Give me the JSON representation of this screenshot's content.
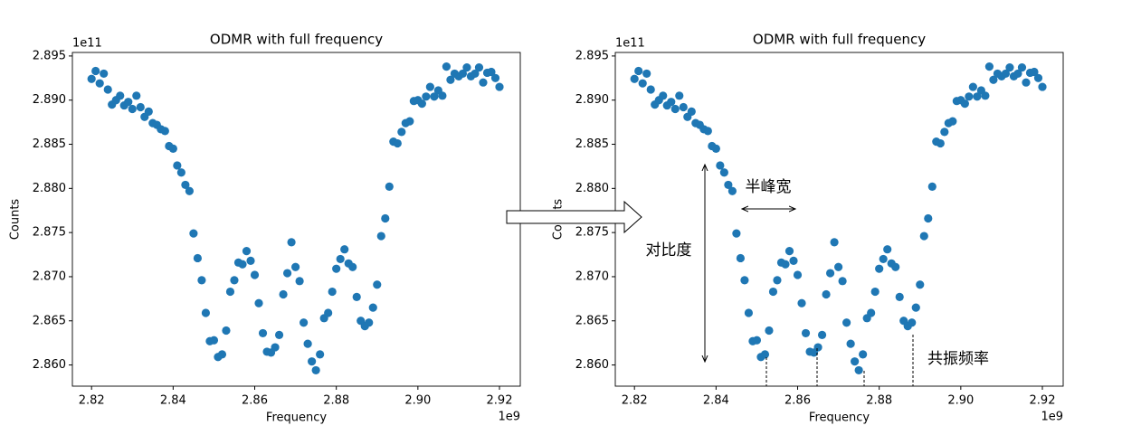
{
  "chart_data": [
    {
      "type": "scatter",
      "title": "ODMR with full frequency",
      "x_label": "Frequency",
      "y_label": "Counts",
      "x_offset_label": "1e9",
      "y_offset_label": "1e11",
      "series": [
        {
          "color": "#1f77b4",
          "x": [
            2.82,
            2.821,
            2.822,
            2.823,
            2.824,
            2.825,
            2.826,
            2.827,
            2.828,
            2.829,
            2.83,
            2.831,
            2.832,
            2.833,
            2.834,
            2.835,
            2.836,
            2.837,
            2.838,
            2.839,
            2.84,
            2.841,
            2.842,
            2.843,
            2.844,
            2.845,
            2.846,
            2.847,
            2.848,
            2.849,
            2.85,
            2.851,
            2.852,
            2.853,
            2.854,
            2.855,
            2.856,
            2.857,
            2.858,
            2.859,
            2.86,
            2.861,
            2.862,
            2.863,
            2.864,
            2.865,
            2.866,
            2.867,
            2.868,
            2.869,
            2.87,
            2.871,
            2.872,
            2.873,
            2.874,
            2.875,
            2.876,
            2.877,
            2.878,
            2.879,
            2.88,
            2.881,
            2.882,
            2.883,
            2.884,
            2.885,
            2.886,
            2.887,
            2.888,
            2.889,
            2.89,
            2.891,
            2.892,
            2.893,
            2.894,
            2.895,
            2.896,
            2.897,
            2.898,
            2.899,
            2.9,
            2.901,
            2.902,
            2.903,
            2.904,
            2.905,
            2.906,
            2.907,
            2.908,
            2.909,
            2.91,
            2.911,
            2.912,
            2.913,
            2.914,
            2.915,
            2.916,
            2.917,
            2.918,
            2.919,
            2.92
          ],
          "values": [
            2.8924,
            2.8933,
            2.8919,
            2.893,
            2.8912,
            2.8895,
            2.89,
            2.8905,
            2.8894,
            2.8898,
            2.889,
            2.8905,
            2.8892,
            2.8881,
            2.8887,
            2.8874,
            2.8872,
            2.8867,
            2.8865,
            2.8848,
            2.8845,
            2.8826,
            2.8818,
            2.8804,
            2.8797,
            2.8749,
            2.8721,
            2.8696,
            2.8659,
            2.8627,
            2.8628,
            2.8609,
            2.8612,
            2.8639,
            2.8683,
            2.8696,
            2.8716,
            2.8714,
            2.8729,
            2.8718,
            2.8702,
            2.867,
            2.8636,
            2.8615,
            2.8614,
            2.862,
            2.8634,
            2.868,
            2.8704,
            2.8739,
            2.8711,
            2.8695,
            2.8648,
            2.8624,
            2.8604,
            2.8594,
            2.8612,
            2.8653,
            2.8659,
            2.8683,
            2.8709,
            2.872,
            2.8731,
            2.8715,
            2.8711,
            2.8677,
            2.865,
            2.8644,
            2.8648,
            2.8665,
            2.8691,
            2.8746,
            2.8766,
            2.8802,
            2.8853,
            2.8851,
            2.8864,
            2.8874,
            2.8876,
            2.8899,
            2.89,
            2.8896,
            2.8904,
            2.8915,
            2.8904,
            2.8911,
            2.8905,
            2.8938,
            2.8923,
            2.893,
            2.8927,
            2.893,
            2.8937,
            2.8927,
            2.893,
            2.8937,
            2.892,
            2.8931,
            2.8932,
            2.8925,
            2.8915
          ]
        }
      ],
      "xlim": [
        2.8153,
        2.9251
      ],
      "ylim": [
        2.8576,
        2.8954
      ],
      "xticks": [
        2.82,
        2.84,
        2.86,
        2.88,
        {
          "value": 2.9,
          "label": "2.90"
        },
        2.92
      ],
      "yticks": [
        {
          "value": 2.86,
          "label": "2.860"
        },
        {
          "value": 2.865,
          "label": "2.865"
        },
        {
          "value": 2.87,
          "label": "2.870"
        },
        {
          "value": 2.875,
          "label": "2.875"
        },
        {
          "value": 2.88,
          "label": "2.880"
        },
        {
          "value": 2.885,
          "label": "2.885"
        },
        {
          "value": 2.89,
          "label": "2.890"
        },
        {
          "value": 2.895,
          "label": "2.895"
        }
      ]
    },
    {
      "type": "scatter",
      "title": "ODMR with full frequency",
      "x_label": "Frequency",
      "y_label": "Counts",
      "x_offset_label": "1e9",
      "y_offset_label": "1e11",
      "annotations": [
        "半峰宽",
        "对比度",
        "共振频率"
      ],
      "series": [
        {
          "color": "#1f77b4",
          "x": [
            2.82,
            2.821,
            2.822,
            2.823,
            2.824,
            2.825,
            2.826,
            2.827,
            2.828,
            2.829,
            2.83,
            2.831,
            2.832,
            2.833,
            2.834,
            2.835,
            2.836,
            2.837,
            2.838,
            2.839,
            2.84,
            2.841,
            2.842,
            2.843,
            2.844,
            2.845,
            2.846,
            2.847,
            2.848,
            2.849,
            2.85,
            2.851,
            2.852,
            2.853,
            2.854,
            2.855,
            2.856,
            2.857,
            2.858,
            2.859,
            2.86,
            2.861,
            2.862,
            2.863,
            2.864,
            2.865,
            2.866,
            2.867,
            2.868,
            2.869,
            2.87,
            2.871,
            2.872,
            2.873,
            2.874,
            2.875,
            2.876,
            2.877,
            2.878,
            2.879,
            2.88,
            2.881,
            2.882,
            2.883,
            2.884,
            2.885,
            2.886,
            2.887,
            2.888,
            2.889,
            2.89,
            2.891,
            2.892,
            2.893,
            2.894,
            2.895,
            2.896,
            2.897,
            2.898,
            2.899,
            2.9,
            2.901,
            2.902,
            2.903,
            2.904,
            2.905,
            2.906,
            2.907,
            2.908,
            2.909,
            2.91,
            2.911,
            2.912,
            2.913,
            2.914,
            2.915,
            2.916,
            2.917,
            2.918,
            2.919,
            2.92
          ],
          "values": [
            2.8924,
            2.8933,
            2.8919,
            2.893,
            2.8912,
            2.8895,
            2.89,
            2.8905,
            2.8894,
            2.8898,
            2.889,
            2.8905,
            2.8892,
            2.8881,
            2.8887,
            2.8874,
            2.8872,
            2.8867,
            2.8865,
            2.8848,
            2.8845,
            2.8826,
            2.8818,
            2.8804,
            2.8797,
            2.8749,
            2.8721,
            2.8696,
            2.8659,
            2.8627,
            2.8628,
            2.8609,
            2.8612,
            2.8639,
            2.8683,
            2.8696,
            2.8716,
            2.8714,
            2.8729,
            2.8718,
            2.8702,
            2.867,
            2.8636,
            2.8615,
            2.8614,
            2.862,
            2.8634,
            2.868,
            2.8704,
            2.8739,
            2.8711,
            2.8695,
            2.8648,
            2.8624,
            2.8604,
            2.8594,
            2.8612,
            2.8653,
            2.8659,
            2.8683,
            2.8709,
            2.872,
            2.8731,
            2.8715,
            2.8711,
            2.8677,
            2.865,
            2.8644,
            2.8648,
            2.8665,
            2.8691,
            2.8746,
            2.8766,
            2.8802,
            2.8853,
            2.8851,
            2.8864,
            2.8874,
            2.8876,
            2.8899,
            2.89,
            2.8896,
            2.8904,
            2.8915,
            2.8904,
            2.8911,
            2.8905,
            2.8938,
            2.8923,
            2.893,
            2.8927,
            2.893,
            2.8937,
            2.8927,
            2.893,
            2.8937,
            2.892,
            2.8931,
            2.8932,
            2.8925,
            2.8915
          ]
        }
      ],
      "xlim": [
        2.8153,
        2.9251
      ],
      "ylim": [
        2.8576,
        2.8954
      ],
      "xticks": [
        2.82,
        2.84,
        2.86,
        2.88,
        {
          "value": 2.9,
          "label": "2.90"
        },
        2.92
      ],
      "yticks": [
        {
          "value": 2.86,
          "label": "2.860"
        },
        {
          "value": 2.865,
          "label": "2.865"
        },
        {
          "value": 2.87,
          "label": "2.870"
        },
        {
          "value": 2.875,
          "label": "2.875"
        },
        {
          "value": 2.88,
          "label": "2.880"
        },
        {
          "value": 2.885,
          "label": "2.885"
        },
        {
          "value": 2.89,
          "label": "2.890"
        },
        {
          "value": 2.895,
          "label": "2.895"
        }
      ]
    }
  ]
}
